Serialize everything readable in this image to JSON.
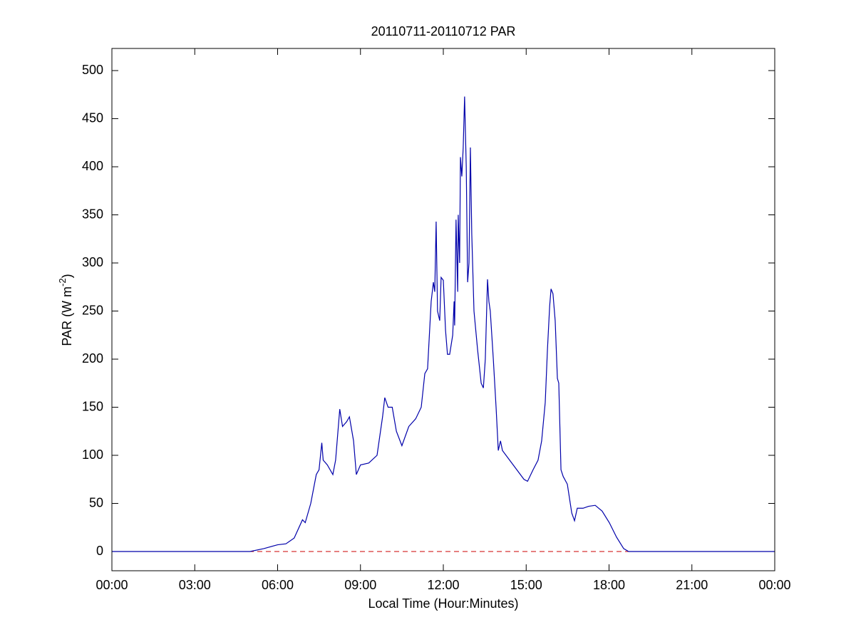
{
  "chart_data": {
    "type": "line",
    "title": "20110711-20110712 PAR",
    "x_label": "Local Time (Hour:Minutes)",
    "y_label": {
      "text": "PAR (W m",
      "superscript": "-2",
      "suffix": ")"
    },
    "xlim": [
      0,
      24
    ],
    "ylim": [
      -20,
      523
    ],
    "xticks": [
      {
        "value": 0,
        "label": "00:00"
      },
      {
        "value": 3,
        "label": "03:00"
      },
      {
        "value": 6,
        "label": "06:00"
      },
      {
        "value": 9,
        "label": "09:00"
      },
      {
        "value": 12,
        "label": "12:00"
      },
      {
        "value": 15,
        "label": "15:00"
      },
      {
        "value": 18,
        "label": "18:00"
      },
      {
        "value": 21,
        "label": "21:00"
      },
      {
        "value": 24,
        "label": "00:00"
      }
    ],
    "yticks": [
      0,
      50,
      100,
      150,
      200,
      250,
      300,
      350,
      400,
      450,
      500
    ],
    "reference_line": {
      "value": 0,
      "color": "#cc0000",
      "style": "dashed"
    },
    "series": [
      {
        "color": "#0000aa",
        "x": [
          0,
          5.0,
          5.5,
          6.0,
          6.3,
          6.6,
          6.9,
          7.0,
          7.2,
          7.4,
          7.5,
          7.6,
          7.65,
          7.8,
          8.0,
          8.1,
          8.25,
          8.35,
          8.5,
          8.6,
          8.75,
          8.85,
          9.0,
          9.3,
          9.6,
          9.8,
          9.88,
          10.0,
          10.15,
          10.3,
          10.5,
          10.75,
          11.0,
          11.2,
          11.33,
          11.43,
          11.56,
          11.64,
          11.69,
          11.74,
          11.79,
          11.87,
          11.92,
          12.0,
          12.08,
          12.15,
          12.23,
          12.34,
          12.39,
          12.41,
          12.46,
          12.52,
          12.54,
          12.59,
          12.62,
          12.67,
          12.72,
          12.77,
          12.83,
          12.88,
          12.93,
          12.98,
          13.03,
          13.11,
          13.24,
          13.37,
          13.45,
          13.52,
          13.6,
          13.65,
          13.7,
          13.81,
          13.91,
          13.99,
          14.07,
          14.14,
          14.27,
          14.4,
          14.66,
          14.92,
          15.05,
          15.25,
          15.43,
          15.56,
          15.69,
          15.77,
          15.85,
          15.9,
          15.97,
          16.05,
          16.13,
          16.18,
          16.26,
          16.34,
          16.49,
          16.65,
          16.75,
          16.85,
          17.06,
          17.26,
          17.5,
          17.75,
          18.01,
          18.27,
          18.53,
          18.71,
          19.05,
          24
        ],
        "values": [
          0,
          0,
          3,
          7,
          8,
          14,
          33,
          30,
          50,
          80,
          85,
          113,
          95,
          90,
          80,
          95,
          148,
          130,
          135,
          140,
          115,
          80,
          90,
          92,
          100,
          140,
          160,
          150,
          150,
          125,
          110,
          130,
          138,
          150,
          185,
          190,
          260,
          280,
          270,
          343,
          250,
          240,
          285,
          282,
          230,
          205,
          205,
          225,
          260,
          235,
          345,
          270,
          350,
          300,
          410,
          390,
          420,
          473,
          400,
          280,
          300,
          420,
          330,
          250,
          210,
          175,
          170,
          200,
          283,
          260,
          250,
          200,
          150,
          105,
          115,
          105,
          100,
          95,
          85,
          75,
          73,
          85,
          95,
          115,
          155,
          210,
          255,
          273,
          268,
          240,
          180,
          175,
          85,
          78,
          70,
          40,
          32,
          45,
          45,
          47,
          48,
          42,
          30,
          15,
          3,
          0,
          0,
          0
        ]
      }
    ]
  }
}
